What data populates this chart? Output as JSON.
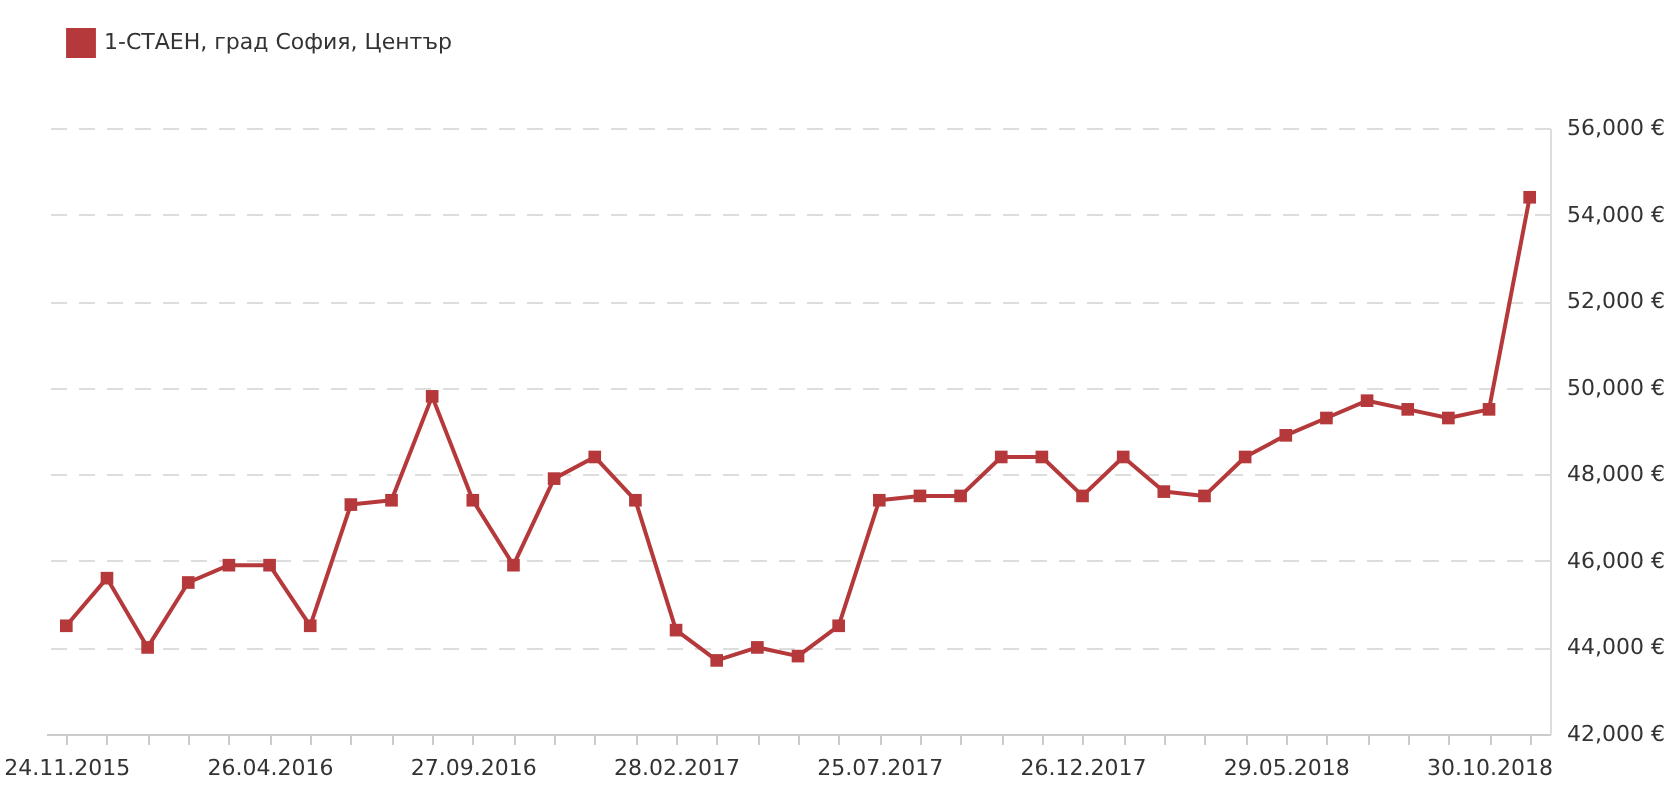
{
  "chart_data": {
    "type": "line",
    "categories": [
      "24.11.2015",
      null,
      null,
      null,
      null,
      "26.04.2016",
      null,
      null,
      null,
      null,
      "27.09.2016",
      null,
      null,
      null,
      null,
      "28.02.2017",
      null,
      null,
      null,
      null,
      "25.07.2017",
      null,
      null,
      null,
      null,
      "26.12.2017",
      null,
      null,
      null,
      null,
      "29.05.2018",
      null,
      null,
      null,
      null,
      "30.10.2018",
      null
    ],
    "series": [
      {
        "name": "1-СТАЕН, град София, Център",
        "color": "#b5393b",
        "values": [
          44500,
          45600,
          44000,
          45500,
          45900,
          45900,
          44500,
          47300,
          47400,
          49800,
          47400,
          45900,
          47900,
          48400,
          47400,
          44400,
          43700,
          44000,
          43800,
          44500,
          47400,
          47500,
          47500,
          48400,
          48400,
          47500,
          48400,
          47600,
          47500,
          48400,
          48900,
          49300,
          49700,
          49500,
          49300,
          49500,
          54400
        ]
      }
    ],
    "ylim": [
      42000,
      56000
    ],
    "yticks": [
      {
        "value": 42000,
        "label": "42,000 €"
      },
      {
        "value": 44000,
        "label": "44,000 €"
      },
      {
        "value": 46000,
        "label": "46,000 €"
      },
      {
        "value": 48000,
        "label": "48,000 €"
      },
      {
        "value": 50000,
        "label": "50,000 €"
      },
      {
        "value": 52000,
        "label": "52,000 €"
      },
      {
        "value": 54000,
        "label": "54,000 €"
      },
      {
        "value": 56000,
        "label": "56,000 €"
      }
    ],
    "grid": "y",
    "legend": "top left",
    "marker": "square",
    "line_style": "solid"
  }
}
